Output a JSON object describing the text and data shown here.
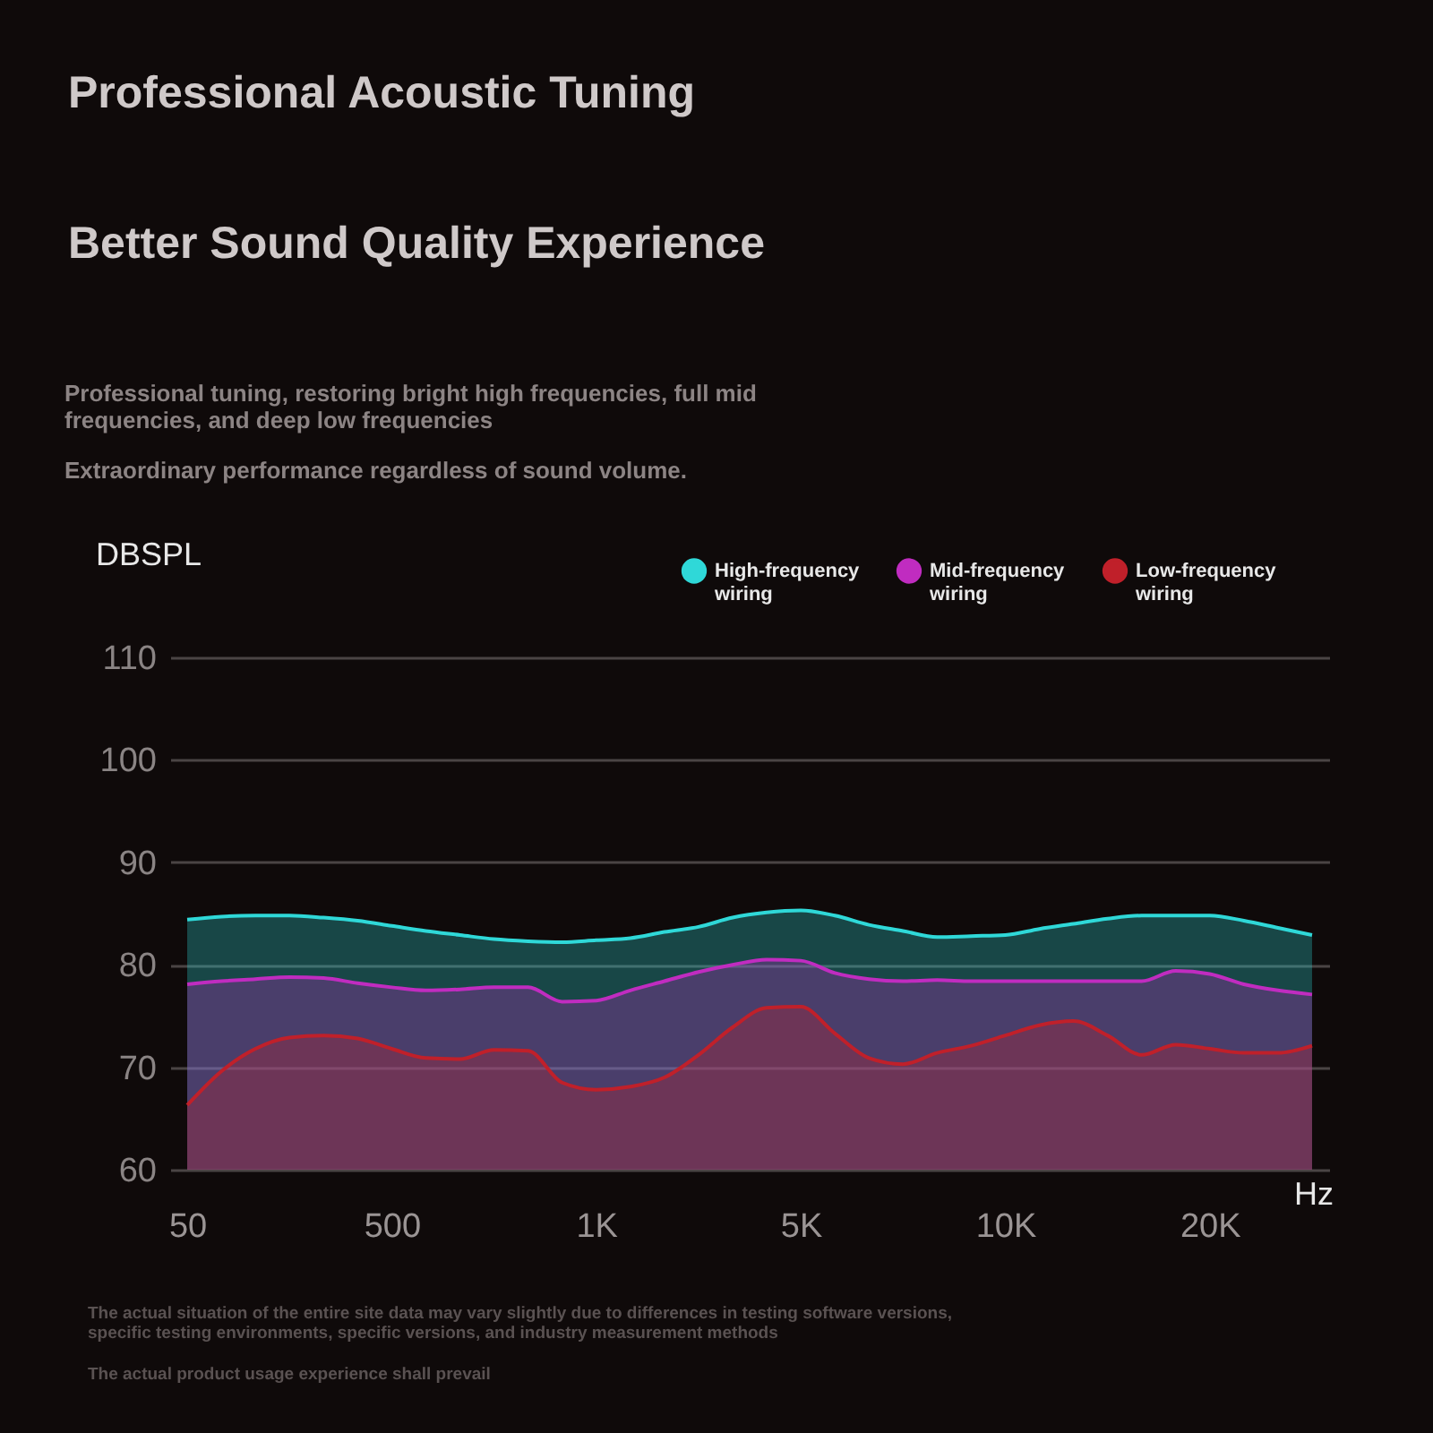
{
  "chart_data": {
    "type": "area",
    "title": "Professional Acoustic Tuning",
    "subtitle": "Better Sound Quality Experience",
    "annotations": [
      "Professional tuning, restoring bright high frequencies, full mid frequencies, and deep low frequencies",
      "Extraordinary performance regardless of sound volume.",
      "The actual situation of the entire site data may vary slightly due to differences in testing software versions, specific testing environments, specific versions, and industry measurement methods",
      "The actual product usage experience shall prevail"
    ],
    "ylabel": "DBSPL",
    "xlabel": "Hz",
    "categories": [
      "50",
      null,
      null,
      null,
      null,
      null,
      "500",
      null,
      null,
      null,
      null,
      null,
      "1K",
      null,
      null,
      null,
      null,
      null,
      "5K",
      null,
      null,
      null,
      null,
      null,
      "10K",
      null,
      null,
      null,
      null,
      null,
      "20K",
      null,
      null,
      null
    ],
    "ylim": [
      60,
      110
    ],
    "yticks": [
      60,
      70,
      80,
      90,
      100,
      110
    ],
    "grid": "y",
    "legend": "top right",
    "series": [
      {
        "name": "High-frequency wiring",
        "color": "#2fd8d8",
        "values": [
          84.4,
          84.7,
          84.8,
          84.8,
          84.6,
          84.3,
          83.8,
          83.3,
          82.9,
          82.5,
          82.3,
          82.2,
          82.4,
          82.6,
          83.2,
          83.7,
          84.6,
          85.1,
          85.3,
          84.8,
          83.9,
          83.3,
          82.7,
          82.8,
          82.9,
          83.5,
          84.0,
          84.5,
          84.8,
          84.8,
          84.8,
          84.3,
          83.6,
          82.9
        ]
      },
      {
        "name": "Mid-frequency wiring",
        "color": "#c02cc0",
        "values": [
          78.1,
          78.4,
          78.6,
          78.8,
          78.7,
          78.2,
          77.8,
          77.5,
          77.6,
          77.8,
          77.8,
          76.4,
          76.5,
          77.5,
          78.4,
          79.3,
          80.0,
          80.5,
          80.4,
          79.2,
          78.6,
          78.4,
          78.5,
          78.4,
          78.4,
          78.4,
          78.4,
          78.4,
          78.4,
          79.4,
          79.1,
          78.1,
          77.5,
          77.1
        ]
      },
      {
        "name": "Low-frequency wiring",
        "color": "#c0202a",
        "values": [
          66.3,
          69.6,
          71.8,
          72.9,
          73.1,
          72.8,
          71.8,
          70.9,
          70.8,
          71.7,
          71.6,
          68.5,
          67.8,
          68.1,
          69.0,
          71.2,
          73.9,
          75.8,
          75.9,
          73.3,
          70.9,
          70.3,
          71.4,
          72.1,
          73.1,
          74.1,
          74.5,
          73.1,
          71.2,
          72.2,
          71.8,
          71.4,
          71.4,
          72.1
        ]
      }
    ]
  }
}
